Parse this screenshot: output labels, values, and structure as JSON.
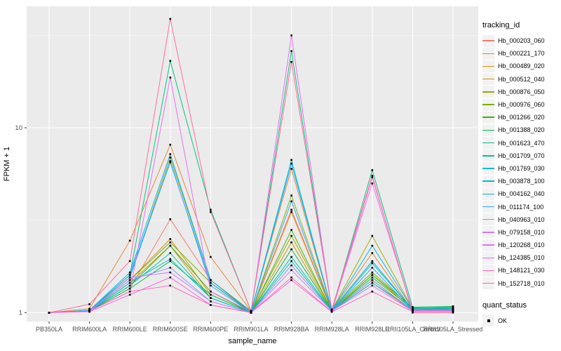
{
  "figure": {
    "background": "#FFFFFF",
    "panel_background": "#EBEBEB",
    "grid_color": "#FFFFFF",
    "tick_color": "#333333",
    "axis_text_color": "#4D4D4D",
    "point_color": "#000000"
  },
  "chart_data": {
    "type": "line",
    "title": "",
    "xlabel": "sample_name",
    "ylabel": "FPKM + 1",
    "y_scale": "log10",
    "ylim": [
      0.895,
      45.4
    ],
    "grid": true,
    "legend_position": "right",
    "point_shape": "square",
    "y_ticks": [
      {
        "label": "1",
        "value": 1
      },
      {
        "label": "10",
        "value": 10
      }
    ],
    "y_minor_gridlines": [
      3.1623,
      31.623
    ],
    "categories": [
      "PB350LA",
      "RRIM600LA",
      "RRIM600LE",
      "RRIM600SE",
      "RRIM600PE",
      "RRIM901LA",
      "RRIM928BA",
      "RRIM928LA",
      "RRIM928LE",
      "RRII105LA_Control",
      "RRII105LA_Stressed"
    ],
    "series": [
      {
        "name": "Hb_000203_060",
        "color": "#F8766D",
        "values": [
          1.0,
          1.02,
          1.35,
          3.2,
          1.5,
          1.0,
          3.6,
          1.02,
          1.45,
          1.02,
          1.02
        ]
      },
      {
        "name": "Hb_000221_170",
        "color": "#EA8331",
        "values": [
          1.0,
          1.05,
          2.45,
          8.1,
          2.0,
          1.02,
          6.0,
          1.03,
          2.1,
          1.03,
          1.03
        ]
      },
      {
        "name": "Hb_000489_020",
        "color": "#D89000",
        "values": [
          1.0,
          1.02,
          1.5,
          2.5,
          1.25,
          1.0,
          3.5,
          1.02,
          1.6,
          1.04,
          1.05
        ]
      },
      {
        "name": "Hb_000512_040",
        "color": "#C09B00",
        "values": [
          1.0,
          1.02,
          1.45,
          2.3,
          1.2,
          1.0,
          2.4,
          1.02,
          1.5,
          1.03,
          1.04
        ]
      },
      {
        "name": "Hb_000876_050",
        "color": "#A3A500",
        "values": [
          1.0,
          1.03,
          1.55,
          6.9,
          1.5,
          1.02,
          2.6,
          1.03,
          2.6,
          1.05,
          1.05
        ]
      },
      {
        "name": "Hb_000976_060",
        "color": "#7CAE00",
        "values": [
          1.0,
          1.02,
          1.5,
          2.4,
          1.45,
          1.0,
          4.3,
          1.03,
          1.65,
          1.06,
          1.07
        ]
      },
      {
        "name": "Hb_001266_020",
        "color": "#39B600",
        "values": [
          1.0,
          1.02,
          1.4,
          2.3,
          1.3,
          1.0,
          2.8,
          1.02,
          1.6,
          1.07,
          1.08
        ]
      },
      {
        "name": "Hb_001388_020",
        "color": "#00BB4E",
        "values": [
          1.0,
          1.02,
          1.35,
          1.9,
          1.25,
          1.0,
          2.2,
          1.02,
          1.55,
          1.05,
          1.06
        ]
      },
      {
        "name": "Hb_001623_470",
        "color": "#00BF7D",
        "values": [
          1.0,
          1.02,
          1.6,
          23.0,
          3.6,
          1.02,
          26.0,
          1.03,
          5.9,
          1.07,
          1.08
        ]
      },
      {
        "name": "Hb_001709_070",
        "color": "#00C1A3",
        "values": [
          1.0,
          1.02,
          1.4,
          2.1,
          1.2,
          1.0,
          2.0,
          1.02,
          1.85,
          1.04,
          1.05
        ]
      },
      {
        "name": "Hb_001769_030",
        "color": "#00BFC4",
        "values": [
          1.0,
          1.02,
          1.45,
          1.95,
          1.2,
          1.0,
          1.9,
          1.02,
          1.45,
          1.04,
          1.04
        ]
      },
      {
        "name": "Hb_003878_100",
        "color": "#00BAE0",
        "values": [
          1.0,
          1.03,
          1.6,
          6.5,
          1.45,
          1.01,
          6.7,
          1.03,
          2.3,
          1.05,
          1.05
        ]
      },
      {
        "name": "Hb_004162_040",
        "color": "#00B0F6",
        "values": [
          1.0,
          1.03,
          1.65,
          7.2,
          1.5,
          1.01,
          6.4,
          1.03,
          1.9,
          1.04,
          1.04
        ]
      },
      {
        "name": "Hb_011174_100",
        "color": "#35A2FF",
        "values": [
          1.0,
          1.02,
          1.55,
          6.6,
          1.4,
          1.0,
          4.0,
          1.02,
          1.75,
          1.03,
          1.03
        ]
      },
      {
        "name": "Hb_040963_010",
        "color": "#9590FF",
        "values": [
          1.0,
          1.02,
          1.5,
          1.75,
          1.15,
          1.0,
          1.8,
          1.02,
          1.5,
          1.02,
          1.03
        ]
      },
      {
        "name": "Hb_079158_010",
        "color": "#C77CFF",
        "values": [
          1.0,
          1.02,
          1.55,
          1.65,
          1.15,
          1.0,
          1.7,
          1.02,
          1.4,
          1.02,
          1.02
        ]
      },
      {
        "name": "Hb_120268_010",
        "color": "#E76BF3",
        "values": [
          1.0,
          1.02,
          1.3,
          18.7,
          1.3,
          1.01,
          31.6,
          1.03,
          5.0,
          1.03,
          1.03
        ]
      },
      {
        "name": "Hb_124385_010",
        "color": "#FA62DB",
        "values": [
          1.0,
          1.01,
          1.25,
          1.55,
          1.1,
          1.0,
          1.5,
          1.01,
          5.4,
          1.02,
          1.02
        ]
      },
      {
        "name": "Hb_148121_030",
        "color": "#FF62BC",
        "values": [
          1.0,
          1.02,
          1.3,
          1.4,
          1.1,
          1.0,
          1.55,
          1.01,
          1.3,
          1.01,
          1.01
        ]
      },
      {
        "name": "Hb_152718_010",
        "color": "#FF6A98",
        "values": [
          1.0,
          1.11,
          1.9,
          38.8,
          3.5,
          1.02,
          22.7,
          1.04,
          5.5,
          1.0,
          1.0
        ]
      }
    ]
  },
  "legend": {
    "tracking": {
      "title": "tracking_id"
    },
    "quant": {
      "title": "quant_status",
      "items": [
        {
          "label": "OK",
          "marker": "black-square"
        }
      ]
    }
  }
}
